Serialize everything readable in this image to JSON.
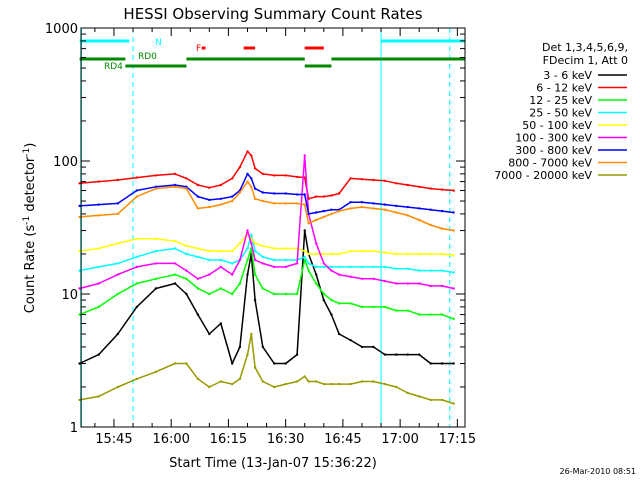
{
  "chart_data": {
    "type": "line",
    "title": "HESSI Observing Summary Count Rates",
    "xlabel": "Start Time (13-Jan-07 15:36:22)",
    "ylabel_main": "Count Rate (s",
    "ylabel_sup1": "-1",
    "ylabel_mid": " detector",
    "ylabel_sup2": "-1",
    "ylabel_end": ")",
    "y_scale": "log",
    "ylim": [
      1,
      1000
    ],
    "xlim": [
      "15:36:22",
      "17:17:00"
    ],
    "y_ticks": [
      {
        "value": 1,
        "label": "1"
      },
      {
        "value": 10,
        "label": "10"
      },
      {
        "value": 100,
        "label": "100"
      },
      {
        "value": 1000,
        "label": "1000"
      }
    ],
    "x_ticks": [
      {
        "value": "15:45",
        "label": "15:45"
      },
      {
        "value": "16:00",
        "label": "16:00"
      },
      {
        "value": "16:15",
        "label": "16:15"
      },
      {
        "value": "16:30",
        "label": "16:30"
      },
      {
        "value": "16:45",
        "label": "16:45"
      },
      {
        "value": "17:00",
        "label": "17:00"
      },
      {
        "value": "17:15",
        "label": "17:15"
      }
    ],
    "legend_placement": "right",
    "legend_header": [
      "Det 1,3,4,5,6,9,",
      "FDecim 1, Att 0"
    ],
    "series": [
      {
        "name": "3 - 6 keV",
        "color": "#000000",
        "x": [
          "15:36",
          "15:41",
          "15:46",
          "15:51",
          "15:56",
          "16:01",
          "16:04",
          "16:07",
          "16:10",
          "16:13",
          "16:16",
          "16:18",
          "16:20",
          "16:21",
          "16:22",
          "16:24",
          "16:27",
          "16:30",
          "16:33",
          "16:35",
          "16:36",
          "16:38",
          "16:40",
          "16:42",
          "16:44",
          "16:47",
          "16:50",
          "16:53",
          "16:56",
          "16:59",
          "17:02",
          "17:05",
          "17:08",
          "17:11",
          "17:14"
        ],
        "y": [
          3,
          3.5,
          5,
          8,
          11,
          12,
          10,
          7,
          5,
          6,
          3,
          4,
          14,
          20,
          9,
          4,
          3,
          3,
          3.5,
          30,
          20,
          14,
          9,
          7,
          5,
          4.5,
          4,
          4,
          3.5,
          3.5,
          3.5,
          3.5,
          3,
          3,
          3
        ]
      },
      {
        "name": "6 - 12 keV",
        "color": "#ff0000",
        "x": [
          "15:36",
          "15:41",
          "15:46",
          "15:51",
          "15:56",
          "16:01",
          "16:04",
          "16:07",
          "16:10",
          "16:13",
          "16:16",
          "16:18",
          "16:20",
          "16:21",
          "16:22",
          "16:24",
          "16:27",
          "16:30",
          "16:33",
          "16:35",
          "16:36",
          "16:38",
          "16:40",
          "16:42",
          "16:44",
          "16:47",
          "16:50",
          "16:53",
          "16:56",
          "16:59",
          "17:02",
          "17:05",
          "17:08",
          "17:11",
          "17:14"
        ],
        "y": [
          68,
          70,
          72,
          75,
          78,
          80,
          74,
          66,
          63,
          66,
          74,
          90,
          118,
          110,
          88,
          80,
          78,
          78,
          76,
          75,
          52,
          54,
          54,
          55,
          57,
          74,
          73,
          72,
          71,
          68,
          66,
          64,
          62,
          61,
          60
        ]
      },
      {
        "name": "12 - 25 keV",
        "color": "#00ff00",
        "x": [
          "15:36",
          "15:41",
          "15:46",
          "15:51",
          "15:56",
          "16:01",
          "16:04",
          "16:07",
          "16:10",
          "16:13",
          "16:16",
          "16:18",
          "16:20",
          "16:21",
          "16:22",
          "16:24",
          "16:27",
          "16:30",
          "16:33",
          "16:35",
          "16:36",
          "16:38",
          "16:40",
          "16:42",
          "16:44",
          "16:47",
          "16:50",
          "16:53",
          "16:56",
          "16:59",
          "17:02",
          "17:05",
          "17:08",
          "17:11",
          "17:14"
        ],
        "y": [
          7,
          8,
          10,
          12,
          13,
          14,
          13,
          11,
          10,
          11,
          10,
          12,
          18,
          22,
          14,
          11,
          10,
          10,
          10,
          18,
          15,
          12,
          10,
          9,
          8.5,
          8.5,
          8,
          8,
          8,
          7.5,
          7.5,
          7,
          7,
          7,
          6.5
        ]
      },
      {
        "name": "25 - 50 keV",
        "color": "#00ffff",
        "x": [
          "15:36",
          "15:41",
          "15:46",
          "15:51",
          "15:56",
          "16:01",
          "16:04",
          "16:07",
          "16:10",
          "16:13",
          "16:16",
          "16:18",
          "16:20",
          "16:21",
          "16:22",
          "16:24",
          "16:27",
          "16:30",
          "16:33",
          "16:35",
          "16:36",
          "16:38",
          "16:40",
          "16:42",
          "16:44",
          "16:47",
          "16:50",
          "16:53",
          "16:56",
          "16:59",
          "17:02",
          "17:05",
          "17:08",
          "17:11",
          "17:14"
        ],
        "y": [
          15,
          16,
          17,
          19,
          21,
          22,
          20,
          19,
          18,
          18,
          17,
          18,
          22,
          28,
          21,
          19,
          18,
          18,
          18,
          19,
          17,
          16,
          16,
          16,
          16,
          16,
          16,
          16,
          16,
          15.5,
          15.5,
          15,
          15,
          15,
          14.5
        ]
      },
      {
        "name": "50 - 100 keV",
        "color": "#ffff00",
        "x": [
          "15:36",
          "15:41",
          "15:46",
          "15:51",
          "15:56",
          "16:01",
          "16:04",
          "16:07",
          "16:10",
          "16:13",
          "16:16",
          "16:18",
          "16:20",
          "16:21",
          "16:22",
          "16:24",
          "16:27",
          "16:30",
          "16:33",
          "16:35",
          "16:36",
          "16:38",
          "16:40",
          "16:42",
          "16:44",
          "16:47",
          "16:50",
          "16:53",
          "16:56",
          "16:59",
          "17:02",
          "17:05",
          "17:08",
          "17:11",
          "17:14"
        ],
        "y": [
          21,
          22,
          24,
          26,
          26,
          25,
          23,
          22,
          21,
          21,
          21,
          24,
          28,
          26,
          24,
          23,
          22,
          22,
          22,
          21,
          20,
          20,
          20,
          20,
          20,
          21,
          21,
          21,
          20.5,
          20,
          20,
          20,
          20,
          20,
          19.5
        ]
      },
      {
        "name": "100 - 300 keV",
        "color": "#ff00ff",
        "x": [
          "15:36",
          "15:41",
          "15:46",
          "15:51",
          "15:56",
          "16:01",
          "16:04",
          "16:07",
          "16:10",
          "16:13",
          "16:16",
          "16:18",
          "16:20",
          "16:21",
          "16:22",
          "16:24",
          "16:27",
          "16:30",
          "16:33",
          "16:35",
          "16:36",
          "16:38",
          "16:40",
          "16:42",
          "16:44",
          "16:47",
          "16:50",
          "16:53",
          "16:56",
          "16:59",
          "17:02",
          "17:05",
          "17:08",
          "17:11",
          "17:14"
        ],
        "y": [
          11,
          12,
          14,
          16,
          17,
          17,
          15,
          13,
          14,
          16,
          14,
          18,
          30,
          24,
          18,
          17,
          16,
          16,
          17,
          110,
          40,
          24,
          17,
          15,
          14,
          13.5,
          13,
          13,
          12.5,
          12,
          12,
          12,
          11.5,
          11.5,
          11
        ]
      },
      {
        "name": "300 - 800 keV",
        "color": "#0000ff",
        "x": [
          "15:36",
          "15:41",
          "15:46",
          "15:51",
          "15:56",
          "16:01",
          "16:04",
          "16:07",
          "16:10",
          "16:13",
          "16:16",
          "16:18",
          "16:20",
          "16:21",
          "16:22",
          "16:24",
          "16:27",
          "16:30",
          "16:33",
          "16:35",
          "16:36",
          "16:38",
          "16:40",
          "16:42",
          "16:44",
          "16:47",
          "16:50",
          "16:53",
          "16:56",
          "16:59",
          "17:02",
          "17:05",
          "17:08",
          "17:11",
          "17:14"
        ],
        "y": [
          46,
          47,
          48,
          60,
          64,
          66,
          64,
          54,
          51,
          52,
          54,
          60,
          80,
          74,
          62,
          58,
          57,
          57,
          56,
          56,
          40,
          41,
          42,
          43,
          43,
          49,
          49,
          48,
          47,
          46,
          45,
          44,
          43,
          42,
          41
        ]
      },
      {
        "name": "800 - 7000 keV",
        "color": "#ff8c00",
        "x": [
          "15:36",
          "15:41",
          "15:46",
          "15:51",
          "15:56",
          "16:01",
          "16:04",
          "16:07",
          "16:10",
          "16:13",
          "16:16",
          "16:18",
          "16:20",
          "16:21",
          "16:22",
          "16:24",
          "16:27",
          "16:30",
          "16:33",
          "16:35",
          "16:36",
          "16:38",
          "16:40",
          "16:42",
          "16:44",
          "16:47",
          "16:50",
          "16:53",
          "16:56",
          "16:59",
          "17:02",
          "17:05",
          "17:08",
          "17:11",
          "17:14"
        ],
        "y": [
          38,
          39,
          40,
          54,
          62,
          64,
          62,
          44,
          45,
          47,
          50,
          58,
          70,
          64,
          52,
          50,
          48,
          48,
          48,
          47,
          34,
          36,
          38,
          40,
          42,
          44,
          45,
          44,
          43,
          41,
          39,
          36,
          33,
          31,
          30
        ]
      },
      {
        "name": "7000 - 20000 keV",
        "color": "#999900",
        "x": [
          "15:36",
          "15:41",
          "15:46",
          "15:51",
          "15:56",
          "16:01",
          "16:04",
          "16:07",
          "16:10",
          "16:13",
          "16:16",
          "16:18",
          "16:20",
          "16:21",
          "16:22",
          "16:24",
          "16:27",
          "16:30",
          "16:33",
          "16:35",
          "16:36",
          "16:38",
          "16:40",
          "16:42",
          "16:44",
          "16:47",
          "16:50",
          "16:53",
          "16:56",
          "16:59",
          "17:02",
          "17:05",
          "17:08",
          "17:11",
          "17:14"
        ],
        "y": [
          1.6,
          1.7,
          2,
          2.3,
          2.6,
          3,
          3,
          2.3,
          2,
          2.2,
          2.1,
          2.3,
          3.5,
          5,
          2.8,
          2.2,
          2,
          2.1,
          2.2,
          2.4,
          2.2,
          2.2,
          2.1,
          2.1,
          2.1,
          2.1,
          2.2,
          2.2,
          2.1,
          2,
          1.8,
          1.7,
          1.6,
          1.6,
          1.5
        ]
      }
    ],
    "annotations": {
      "labels": [
        {
          "text": "N",
          "color": "#00ffff"
        },
        {
          "text": "RD0",
          "color": "#008800"
        },
        {
          "text": "RD4",
          "color": "#008800"
        },
        {
          "text": "F",
          "color": "#ff0000"
        }
      ],
      "intervals": [
        {
          "label": "N",
          "color": "#00ffff",
          "start": "15:36",
          "end": "15:49"
        },
        {
          "label": "N",
          "color": "#00ffff",
          "start": "16:55",
          "end": "17:17"
        },
        {
          "label": "RD0",
          "color": "#008800",
          "start": "15:36",
          "end": "15:48"
        },
        {
          "label": "RD0",
          "color": "#008800",
          "start": "16:04",
          "end": "16:35"
        },
        {
          "label": "RD0",
          "color": "#008800",
          "start": "16:42",
          "end": "17:17"
        },
        {
          "label": "RD4",
          "color": "#008800",
          "start": "15:48",
          "end": "16:04"
        },
        {
          "label": "RD4",
          "color": "#008800",
          "start": "16:35",
          "end": "16:42"
        },
        {
          "label": "F",
          "color": "#ff0000",
          "start": "16:08",
          "end": "16:09"
        },
        {
          "label": "F",
          "color": "#ff0000",
          "start": "16:19",
          "end": "16:22"
        },
        {
          "label": "F",
          "color": "#ff0000",
          "start": "16:35",
          "end": "16:40"
        }
      ],
      "solid_vlines": [
        "15:36:30",
        "16:55"
      ],
      "dashed_vlines": [
        "15:50",
        "17:13"
      ]
    },
    "grid": false,
    "footer_timestamp": "26-Mar-2010 08:51"
  }
}
